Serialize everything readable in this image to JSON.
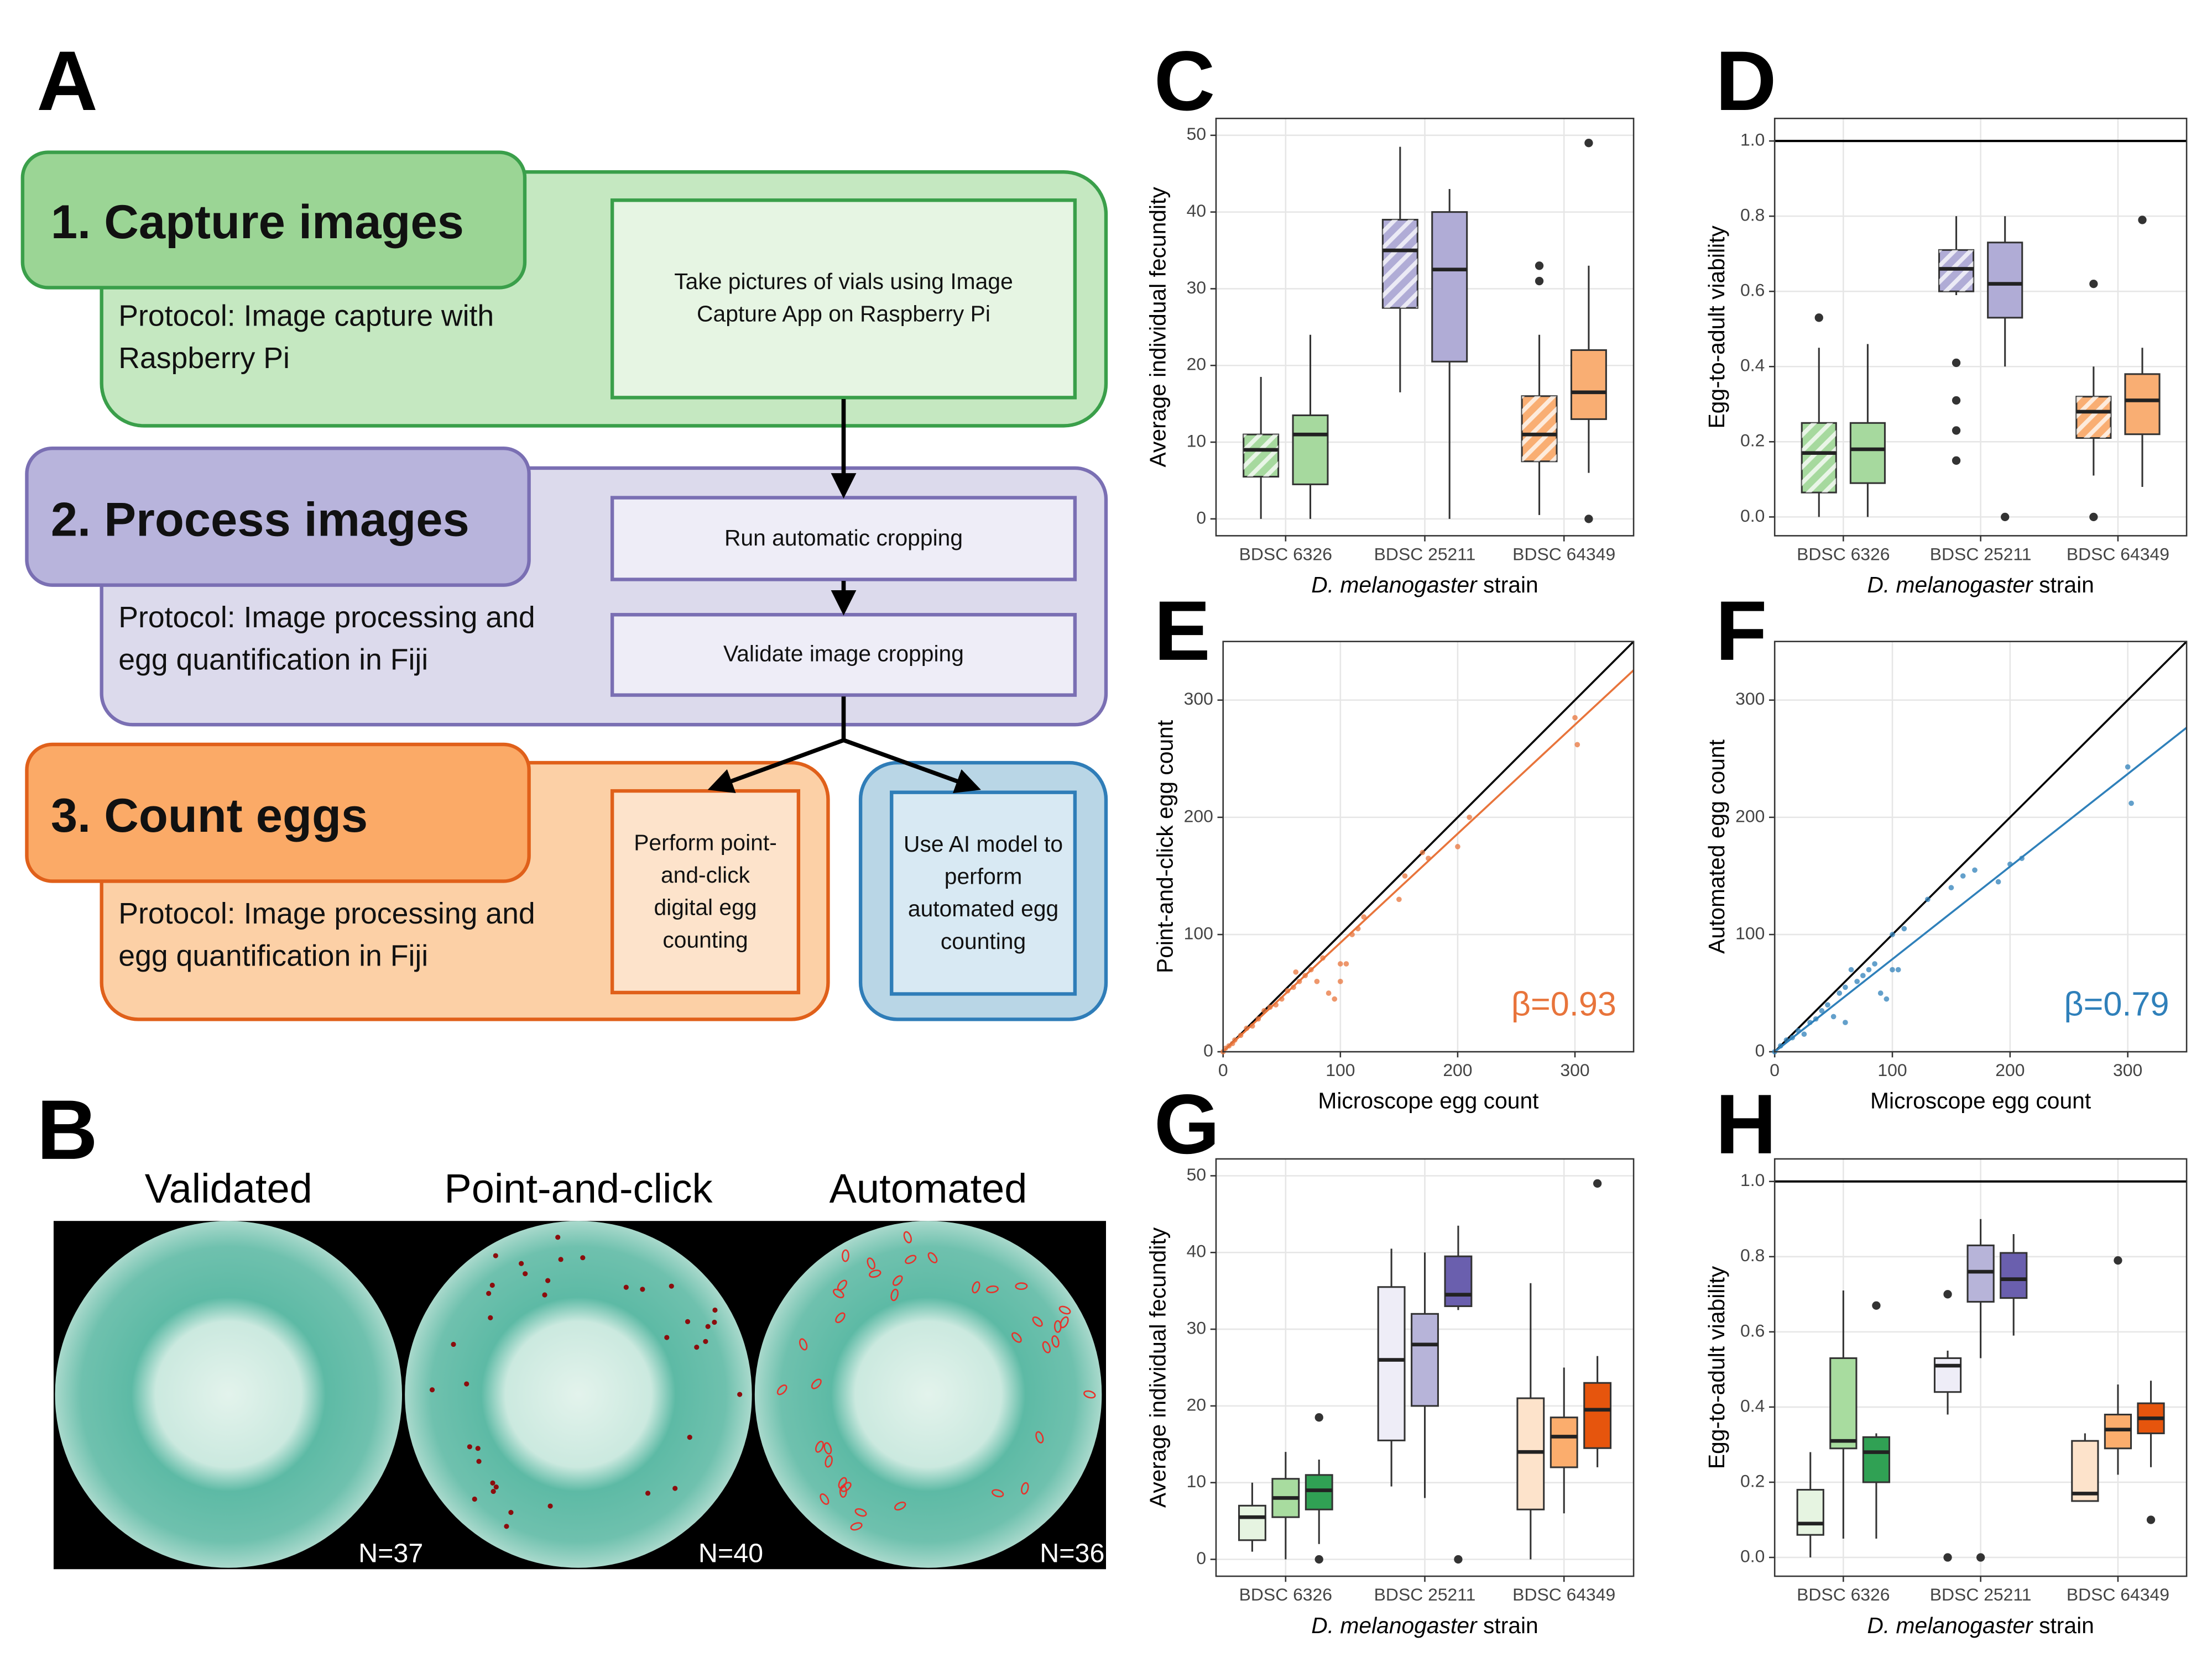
{
  "panel_labels": [
    "A",
    "B",
    "C",
    "D",
    "E",
    "F",
    "G",
    "H"
  ],
  "flowchart": {
    "steps": [
      {
        "title": "1. Capture images",
        "protocol": "Protocol: Image capture with Raspberry Pi",
        "boxes": [
          "Take pictures of vials using Image Capture App on Raspberry Pi"
        ]
      },
      {
        "title": "2. Process images",
        "protocol": "Protocol: Image processing and egg quantification in Fiji",
        "boxes": [
          "Run automatic cropping",
          "Validate image cropping"
        ]
      },
      {
        "title": "3. Count eggs",
        "protocol": "Protocol: Image processing and egg quantification in Fiji",
        "boxes": [
          "Perform point-and-click digital egg counting",
          "Use AI model to perform automated egg counting"
        ]
      }
    ]
  },
  "images": {
    "titles": [
      "Validated",
      "Point-and-click",
      "Automated"
    ],
    "counts": [
      "N=37",
      "N=40",
      "N=36"
    ]
  },
  "chart_data": [
    {
      "type": "box",
      "ylabel": "Average individual fecundity",
      "xlabel": "D. melanogaster strain",
      "categories": [
        "BDSC 6326",
        "BDSC 25211",
        "BDSC 64349"
      ],
      "ylim": [
        -2.2,
        52.2
      ],
      "yticks": [
        0,
        10,
        20,
        30,
        40,
        50
      ],
      "grid": true,
      "boxes": [
        [
          {
            "color": "#a6d99e",
            "hatch": true,
            "whislo": 0,
            "q1": 5.5,
            "med": 9,
            "q3": 11,
            "whishi": 18.5,
            "fliers": []
          },
          {
            "color": "#a6d99e",
            "hatch": false,
            "whislo": 0,
            "q1": 4.5,
            "med": 11,
            "q3": 13.5,
            "whishi": 24,
            "fliers": []
          }
        ],
        [
          {
            "color": "#b0acd6",
            "hatch": true,
            "whislo": 16.5,
            "q1": 27.5,
            "med": 35,
            "q3": 39,
            "whishi": 48.5,
            "fliers": []
          },
          {
            "color": "#b0acd6",
            "hatch": false,
            "whislo": 0,
            "q1": 20.5,
            "med": 32.5,
            "q3": 40,
            "whishi": 43,
            "fliers": []
          }
        ],
        [
          {
            "color": "#f9ae73",
            "hatch": true,
            "whislo": 0.5,
            "q1": 7.5,
            "med": 11,
            "q3": 16,
            "whishi": 24,
            "fliers": [
              33,
              31
            ]
          },
          {
            "color": "#f9ae73",
            "hatch": false,
            "whislo": 6,
            "q1": 13,
            "med": 16.5,
            "q3": 22,
            "whishi": 33,
            "fliers": [
              49,
              0
            ]
          }
        ]
      ]
    },
    {
      "type": "box",
      "ylabel": "Egg-to-adult viability",
      "xlabel": "D. melanogaster strain",
      "categories": [
        "BDSC 6326",
        "BDSC 25211",
        "BDSC 64349"
      ],
      "ylim": [
        -0.05,
        1.06
      ],
      "yticks": [
        {
          "value": 0,
          "label": "0.0"
        },
        0.2,
        0.4,
        0.6,
        0.8,
        {
          "value": 1,
          "label": "1.0"
        }
      ],
      "grid": true,
      "reference_line": 1,
      "boxes": [
        [
          {
            "color": "#a6d99e",
            "hatch": true,
            "whislo": 0,
            "q1": 0.065,
            "med": 0.17,
            "q3": 0.25,
            "whishi": 0.45,
            "fliers": [
              0.53
            ]
          },
          {
            "color": "#a6d99e",
            "hatch": false,
            "whislo": 0,
            "q1": 0.09,
            "med": 0.18,
            "q3": 0.25,
            "whishi": 0.46,
            "fliers": []
          }
        ],
        [
          {
            "color": "#b0acd6",
            "hatch": true,
            "whislo": 0.59,
            "q1": 0.6,
            "med": 0.66,
            "q3": 0.71,
            "whishi": 0.8,
            "fliers": [
              0.41,
              0.31,
              0.23,
              0.15
            ]
          },
          {
            "color": "#b0acd6",
            "hatch": false,
            "whislo": 0.4,
            "q1": 0.53,
            "med": 0.62,
            "q3": 0.73,
            "whishi": 0.8,
            "fliers": [
              0
            ]
          }
        ],
        [
          {
            "color": "#f9ae73",
            "hatch": true,
            "whislo": 0.11,
            "q1": 0.21,
            "med": 0.28,
            "q3": 0.32,
            "whishi": 0.4,
            "fliers": [
              0.62,
              0
            ]
          },
          {
            "color": "#f9ae73",
            "hatch": false,
            "whislo": 0.08,
            "q1": 0.22,
            "med": 0.31,
            "q3": 0.38,
            "whishi": 0.45,
            "fliers": [
              0.79
            ]
          }
        ]
      ]
    },
    {
      "type": "scatter",
      "xlabel": "Microscope egg count",
      "ylabel": "Point-and-click egg count",
      "color": "#e8743b",
      "xlim": [
        0,
        350
      ],
      "ylim": [
        0,
        350
      ],
      "xticks": [
        0,
        100,
        200,
        300
      ],
      "yticks": [
        0,
        100,
        200,
        300
      ],
      "grid": true,
      "identity_line": true,
      "fit": {
        "slope": 0.93,
        "label": "β=0.93"
      },
      "x": [
        0,
        2,
        5,
        8,
        10,
        15,
        20,
        25,
        30,
        35,
        40,
        45,
        50,
        55,
        60,
        62,
        65,
        70,
        75,
        80,
        85,
        90,
        95,
        100,
        100,
        105,
        110,
        115,
        120,
        150,
        155,
        170,
        175,
        200,
        210,
        300,
        302
      ],
      "y": [
        0,
        3,
        5,
        7,
        10,
        14,
        20,
        22,
        28,
        35,
        38,
        40,
        45,
        52,
        55,
        68,
        60,
        65,
        70,
        60,
        80,
        50,
        45,
        60,
        75,
        75,
        100,
        105,
        115,
        130,
        150,
        170,
        165,
        175,
        200,
        285,
        262
      ]
    },
    {
      "type": "scatter",
      "xlabel": "Microscope egg count",
      "ylabel": "Automated egg count",
      "color": "#2f80ba",
      "xlim": [
        0,
        350
      ],
      "ylim": [
        0,
        350
      ],
      "xticks": [
        0,
        100,
        200,
        300
      ],
      "yticks": [
        0,
        100,
        200,
        300
      ],
      "grid": true,
      "identity_line": true,
      "fit": {
        "slope": 0.79,
        "label": "β=0.79"
      },
      "x": [
        0,
        5,
        10,
        15,
        20,
        25,
        30,
        35,
        40,
        45,
        50,
        55,
        60,
        60,
        65,
        70,
        75,
        80,
        85,
        90,
        95,
        100,
        105,
        100,
        110,
        130,
        150,
        160,
        170,
        190,
        200,
        210,
        300,
        303
      ],
      "y": [
        0,
        5,
        10,
        12,
        18,
        15,
        25,
        28,
        35,
        40,
        30,
        50,
        55,
        25,
        70,
        60,
        65,
        70,
        75,
        50,
        45,
        70,
        70,
        100,
        105,
        130,
        140,
        150,
        155,
        145,
        160,
        165,
        243,
        212
      ]
    },
    {
      "type": "box",
      "ylabel": "Average individual fecundity",
      "xlabel": "D. melanogaster strain",
      "categories": [
        "BDSC 6326",
        "BDSC 25211",
        "BDSC 64349"
      ],
      "ylim": [
        -2.2,
        52.2
      ],
      "yticks": [
        0,
        10,
        20,
        30,
        40,
        50
      ],
      "grid": true,
      "boxes": [
        [
          {
            "color": "#e6f4e1",
            "hatch": false,
            "whislo": 1,
            "q1": 2.5,
            "med": 5.5,
            "q3": 7,
            "whishi": 10,
            "fliers": []
          },
          {
            "color": "#a8dc9f",
            "hatch": false,
            "whislo": 0,
            "q1": 5.5,
            "med": 8,
            "q3": 10.5,
            "whishi": 14,
            "fliers": []
          },
          {
            "color": "#30a154",
            "hatch": false,
            "whislo": 2,
            "q1": 6.5,
            "med": 9,
            "q3": 11,
            "whishi": 13,
            "fliers": [
              18.5,
              0
            ]
          }
        ],
        [
          {
            "color": "#eeedf7",
            "hatch": false,
            "whislo": 9.5,
            "q1": 15.5,
            "med": 26,
            "q3": 35.5,
            "whishi": 40.5,
            "fliers": []
          },
          {
            "color": "#b7b4d9",
            "hatch": false,
            "whislo": 8,
            "q1": 20,
            "med": 28,
            "q3": 32,
            "whishi": 40,
            "fliers": []
          },
          {
            "color": "#6a5fae",
            "hatch": false,
            "whislo": 32.5,
            "q1": 33,
            "med": 34.5,
            "q3": 39.5,
            "whishi": 43.5,
            "fliers": [
              0
            ]
          }
        ],
        [
          {
            "color": "#fde3cb",
            "hatch": false,
            "whislo": 0,
            "q1": 6.5,
            "med": 14,
            "q3": 21,
            "whishi": 36,
            "fliers": []
          },
          {
            "color": "#fbad6d",
            "hatch": false,
            "whislo": 6,
            "q1": 12,
            "med": 16,
            "q3": 18.5,
            "whishi": 25,
            "fliers": []
          },
          {
            "color": "#e6550d",
            "hatch": false,
            "whislo": 12,
            "q1": 14.5,
            "med": 19.5,
            "q3": 23,
            "whishi": 26.5,
            "fliers": [
              49
            ]
          }
        ]
      ]
    },
    {
      "type": "box",
      "ylabel": "Egg-to-adult viability",
      "xlabel": "D. melanogaster strain",
      "categories": [
        "BDSC 6326",
        "BDSC 25211",
        "BDSC 64349"
      ],
      "ylim": [
        -0.05,
        1.06
      ],
      "yticks": [
        {
          "value": 0,
          "label": "0.0"
        },
        0.2,
        0.4,
        0.6,
        0.8,
        {
          "value": 1,
          "label": "1.0"
        }
      ],
      "grid": true,
      "reference_line": 1,
      "boxes": [
        [
          {
            "color": "#e6f4e1",
            "hatch": false,
            "whislo": 0,
            "q1": 0.06,
            "med": 0.09,
            "q3": 0.18,
            "whishi": 0.28,
            "fliers": []
          },
          {
            "color": "#a8dc9f",
            "hatch": false,
            "whislo": 0.05,
            "q1": 0.29,
            "med": 0.31,
            "q3": 0.53,
            "whishi": 0.71,
            "fliers": []
          },
          {
            "color": "#30a154",
            "hatch": false,
            "whislo": 0.05,
            "q1": 0.2,
            "med": 0.28,
            "q3": 0.32,
            "whishi": 0.33,
            "fliers": [
              0.67
            ]
          }
        ],
        [
          {
            "color": "#eeedf7",
            "hatch": false,
            "whislo": 0.38,
            "q1": 0.44,
            "med": 0.51,
            "q3": 0.53,
            "whishi": 0.55,
            "fliers": [
              0.7,
              0
            ]
          },
          {
            "color": "#b7b4d9",
            "hatch": false,
            "whislo": 0.53,
            "q1": 0.68,
            "med": 0.76,
            "q3": 0.83,
            "whishi": 0.9,
            "fliers": [
              0
            ]
          },
          {
            "color": "#6a5fae",
            "hatch": false,
            "whislo": 0.59,
            "q1": 0.69,
            "med": 0.74,
            "q3": 0.81,
            "whishi": 0.86,
            "fliers": []
          }
        ],
        [
          {
            "color": "#fde3cb",
            "hatch": false,
            "whislo": 0.15,
            "q1": 0.15,
            "med": 0.17,
            "q3": 0.31,
            "whishi": 0.33,
            "fliers": []
          },
          {
            "color": "#fbad6d",
            "hatch": false,
            "whislo": 0.22,
            "q1": 0.29,
            "med": 0.34,
            "q3": 0.38,
            "whishi": 0.46,
            "fliers": [
              0.79
            ]
          },
          {
            "color": "#e6550d",
            "hatch": false,
            "whislo": 0.24,
            "q1": 0.33,
            "med": 0.37,
            "q3": 0.41,
            "whishi": 0.47,
            "fliers": [
              0.1
            ]
          }
        ]
      ]
    }
  ]
}
